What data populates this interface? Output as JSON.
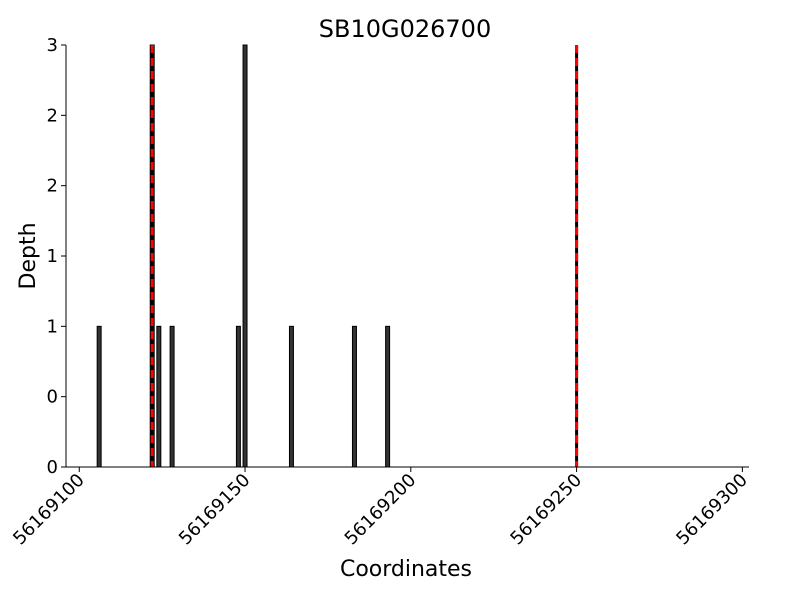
{
  "chart_data": {
    "type": "bar",
    "title": "SB10G026700",
    "x_label": "Coordinates",
    "y_label": "Depth",
    "x": [
      56169106,
      56169122,
      56169124,
      56169128,
      56169164,
      56169183,
      56169148,
      56169150,
      56169193
    ],
    "values": [
      1,
      3,
      1,
      1,
      1,
      1,
      1,
      3,
      1
    ],
    "color": "#333333",
    "markers": [
      56169122,
      56169250
    ],
    "marker_color": "#ff0000",
    "xlim": [
      56169096,
      56169302
    ],
    "xticks": [
      56169100,
      56169150,
      56169200,
      56169250,
      56169300
    ],
    "ylim": [
      0,
      3
    ],
    "yticks": [
      0,
      {
        "value": 0.5,
        "label": "0"
      },
      1,
      {
        "value": 1.5,
        "label": "1"
      },
      2,
      {
        "value": 2.5,
        "label": "2"
      },
      3
    ]
  }
}
